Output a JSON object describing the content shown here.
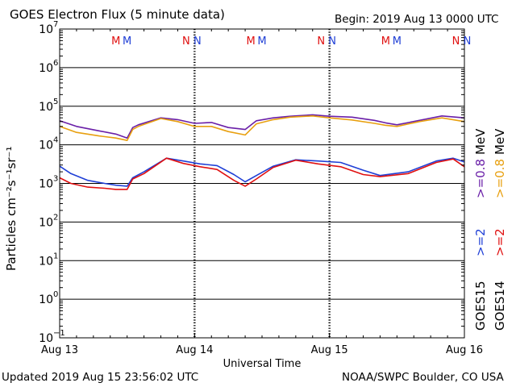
{
  "header": {
    "title": "GOES Electron Flux (5 minute data)",
    "begin": "Begin: 2019 Aug 13 0000 UTC"
  },
  "footer": {
    "updated": "Updated 2019 Aug 15 23:56:02 UTC",
    "credit": "NOAA/SWPC Boulder, CO USA"
  },
  "legend": {
    "goes15": "GOES15",
    "goes14": "GOES14",
    "ch_gt2": ">=2",
    "ch_gt08": ">=0.8",
    "unit": "MeV"
  },
  "colors": {
    "goes15_gt2": "#1f3fd6",
    "goes14_gt2": "#e01010",
    "goes15_gt08": "#6a1fa8",
    "goes14_gt08": "#e8a010"
  },
  "chart_data": {
    "type": "line",
    "title": "GOES Electron Flux (5 minute data)",
    "xlabel": "Universal Time",
    "ylabel": "Particles cm⁻²s⁻¹sr⁻¹",
    "y_scale": "log",
    "ylim": [
      0.1,
      10000000
    ],
    "y_ticks": [
      {
        "value": 10000000,
        "base": "10",
        "exp": "7"
      },
      {
        "value": 1000000,
        "base": "10",
        "exp": "6"
      },
      {
        "value": 100000,
        "base": "10",
        "exp": "5"
      },
      {
        "value": 10000,
        "base": "10",
        "exp": "4"
      },
      {
        "value": 1000,
        "base": "10",
        "exp": "3"
      },
      {
        "value": 100,
        "base": "10",
        "exp": "2"
      },
      {
        "value": 10,
        "base": "10",
        "exp": "1"
      },
      {
        "value": 1,
        "base": "10",
        "exp": "0"
      },
      {
        "value": 0.1,
        "base": "10",
        "exp": "−1"
      }
    ],
    "xlim": [
      "2019-08-13T00:00",
      "2019-08-16T00:00"
    ],
    "x_ticks": [
      {
        "value": "2019-08-13T00:00",
        "label": "Aug 13"
      },
      {
        "value": "2019-08-14T00:00",
        "label": "Aug 14"
      },
      {
        "value": "2019-08-15T00:00",
        "label": "Aug 15"
      },
      {
        "value": "2019-08-16T00:00",
        "label": "Aug 16"
      }
    ],
    "threshold": 1000,
    "markers": [
      {
        "time": "2019-08-13T10:00",
        "label": "M",
        "series": "GOES14"
      },
      {
        "time": "2019-08-13T12:00",
        "label": "M",
        "series": "GOES15"
      },
      {
        "time": "2019-08-13T22:30",
        "label": "N",
        "series": "GOES14"
      },
      {
        "time": "2019-08-14T00:30",
        "label": "N",
        "series": "GOES15"
      },
      {
        "time": "2019-08-14T10:00",
        "label": "M",
        "series": "GOES14"
      },
      {
        "time": "2019-08-14T12:00",
        "label": "M",
        "series": "GOES15"
      },
      {
        "time": "2019-08-14T22:30",
        "label": "N",
        "series": "GOES14"
      },
      {
        "time": "2019-08-15T00:30",
        "label": "N",
        "series": "GOES15"
      },
      {
        "time": "2019-08-15T10:00",
        "label": "M",
        "series": "GOES14"
      },
      {
        "time": "2019-08-15T12:00",
        "label": "M",
        "series": "GOES15"
      },
      {
        "time": "2019-08-15T22:30",
        "label": "N",
        "series": "GOES14"
      },
      {
        "time": "2019-08-16T00:30",
        "label": "N",
        "series": "GOES15"
      }
    ],
    "series": [
      {
        "name": "GOES15 >=0.8 MeV",
        "color_key": "goes15_gt08",
        "x": [
          "2019-08-13T00:00",
          "2019-08-13T03:00",
          "2019-08-13T07:00",
          "2019-08-13T10:00",
          "2019-08-13T12:00",
          "2019-08-13T13:00",
          "2019-08-13T14:00",
          "2019-08-13T18:00",
          "2019-08-13T21:00",
          "2019-08-14T00:00",
          "2019-08-14T03:00",
          "2019-08-14T06:00",
          "2019-08-14T09:00",
          "2019-08-14T11:00",
          "2019-08-14T14:00",
          "2019-08-14T17:00",
          "2019-08-14T21:00",
          "2019-08-15T00:00",
          "2019-08-15T04:00",
          "2019-08-15T08:00",
          "2019-08-15T10:00",
          "2019-08-15T12:00",
          "2019-08-15T16:00",
          "2019-08-15T20:00",
          "2019-08-16T00:00"
        ],
        "values": [
          42000,
          30000,
          23000,
          19000,
          15000,
          28000,
          33000,
          50000,
          45000,
          36000,
          38000,
          28000,
          25000,
          42000,
          50000,
          55000,
          60000,
          55000,
          52000,
          43000,
          37000,
          33000,
          43000,
          56000,
          50000
        ]
      },
      {
        "name": "GOES14 >=0.8 MeV",
        "color_key": "goes14_gt08",
        "x": [
          "2019-08-13T00:00",
          "2019-08-13T03:00",
          "2019-08-13T07:00",
          "2019-08-13T10:00",
          "2019-08-13T12:00",
          "2019-08-13T13:00",
          "2019-08-13T14:00",
          "2019-08-13T18:00",
          "2019-08-13T21:00",
          "2019-08-14T00:00",
          "2019-08-14T03:00",
          "2019-08-14T06:00",
          "2019-08-14T09:00",
          "2019-08-14T11:00",
          "2019-08-14T14:00",
          "2019-08-14T17:00",
          "2019-08-14T21:00",
          "2019-08-15T00:00",
          "2019-08-15T04:00",
          "2019-08-15T08:00",
          "2019-08-15T10:00",
          "2019-08-15T12:00",
          "2019-08-15T16:00",
          "2019-08-15T20:00",
          "2019-08-16T00:00"
        ],
        "values": [
          30000,
          21000,
          17000,
          15000,
          13000,
          25000,
          30000,
          48000,
          40000,
          30000,
          30000,
          22000,
          18000,
          35000,
          45000,
          52000,
          56000,
          50000,
          44000,
          36000,
          32000,
          30000,
          40000,
          50000,
          40000
        ]
      },
      {
        "name": "GOES15 >=2 MeV",
        "color_key": "goes15_gt2",
        "x": [
          "2019-08-13T00:00",
          "2019-08-13T02:00",
          "2019-08-13T05:00",
          "2019-08-13T08:00",
          "2019-08-13T10:00",
          "2019-08-13T12:00",
          "2019-08-13T13:00",
          "2019-08-13T15:00",
          "2019-08-13T19:00",
          "2019-08-13T22:00",
          "2019-08-14T01:00",
          "2019-08-14T04:00",
          "2019-08-14T07:00",
          "2019-08-14T09:00",
          "2019-08-14T11:00",
          "2019-08-14T14:00",
          "2019-08-14T18:00",
          "2019-08-14T22:00",
          "2019-08-15T02:00",
          "2019-08-15T06:00",
          "2019-08-15T09:00",
          "2019-08-15T14:00",
          "2019-08-15T19:00",
          "2019-08-15T22:00",
          "2019-08-16T00:00"
        ],
        "values": [
          2800,
          1800,
          1200,
          1000,
          900,
          850,
          1400,
          2000,
          4500,
          3800,
          3200,
          2900,
          1700,
          1100,
          1600,
          2800,
          4100,
          3800,
          3500,
          2200,
          1600,
          2000,
          3800,
          4500,
          3600
        ]
      },
      {
        "name": "GOES14 >=2 MeV",
        "color_key": "goes14_gt2",
        "x": [
          "2019-08-13T00:00",
          "2019-08-13T02:00",
          "2019-08-13T05:00",
          "2019-08-13T08:00",
          "2019-08-13T10:00",
          "2019-08-13T12:00",
          "2019-08-13T13:00",
          "2019-08-13T15:00",
          "2019-08-13T19:00",
          "2019-08-13T22:00",
          "2019-08-14T01:00",
          "2019-08-14T04:00",
          "2019-08-14T07:00",
          "2019-08-14T09:00",
          "2019-08-14T11:00",
          "2019-08-14T14:00",
          "2019-08-14T18:00",
          "2019-08-14T22:00",
          "2019-08-15T02:00",
          "2019-08-15T06:00",
          "2019-08-15T09:00",
          "2019-08-15T14:00",
          "2019-08-15T19:00",
          "2019-08-15T22:00",
          "2019-08-16T00:00"
        ],
        "values": [
          1400,
          1000,
          800,
          750,
          700,
          700,
          1300,
          1800,
          4500,
          3300,
          2700,
          2300,
          1200,
          850,
          1300,
          2600,
          4000,
          3200,
          2700,
          1700,
          1500,
          1800,
          3500,
          4300,
          2700
        ]
      }
    ]
  }
}
